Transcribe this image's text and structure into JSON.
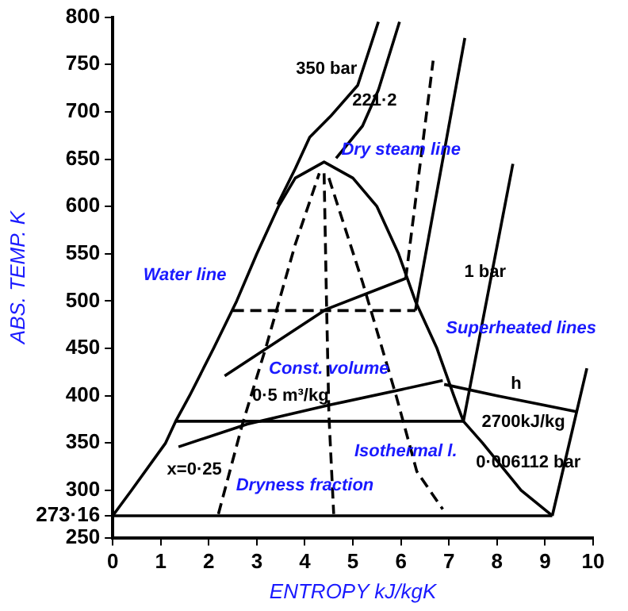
{
  "chart_data": {
    "type": "line",
    "xlabel": "ENTROPY kJ/kgK",
    "ylabel": "ABS. TEMP. K",
    "xlim": [
      0,
      10
    ],
    "ylim": [
      250,
      800
    ],
    "xticks": [
      0,
      1,
      2,
      3,
      4,
      5,
      6,
      7,
      8,
      9,
      10
    ],
    "yticks": [
      250,
      {
        "value": 273.16,
        "label": "273·16"
      },
      300,
      350,
      400,
      450,
      500,
      550,
      600,
      650,
      700,
      750,
      800
    ],
    "grid": false,
    "legend": false,
    "marker": "none",
    "series": [
      {
        "color": "#000000",
        "x": [
          0,
          0.39,
          1.1,
          1.31,
          1.6,
          2.1,
          2.58,
          3.0,
          3.45,
          3.8,
          4.4,
          5.0,
          5.5,
          5.95,
          6.3,
          6.75,
          7.1,
          7.3,
          7.7,
          8.5,
          9.15
        ],
        "values": [
          273.16,
          300,
          350,
          373,
          400,
          450,
          500,
          550,
          600,
          630,
          647,
          630,
          600,
          550,
          500,
          450,
          400,
          373,
          350,
          300,
          273.16
        ]
      },
      {
        "color": "#000000",
        "x": [
          3.43,
          3.8,
          4.1,
          4.53,
          5.1,
          5.53
        ],
        "values": [
          602,
          640,
          673,
          695,
          728,
          795
        ]
      },
      {
        "color": "#000000",
        "x": [
          4.65,
          5.2,
          5.53,
          5.97
        ],
        "values": [
          651,
          685,
          723,
          795
        ]
      },
      {
        "color": "#000000",
        "x": [
          0,
          9.15
        ],
        "values": [
          273.16,
          273.16
        ]
      },
      {
        "color": "#000000",
        "x": [
          1.31,
          7.3
        ],
        "values": [
          373,
          373
        ]
      },
      {
        "color": "#000000",
        "x": [
          7.3,
          8.33
        ],
        "values": [
          373,
          645
        ]
      },
      {
        "color": "#000000",
        "x": [
          9.15,
          9.87
        ],
        "values": [
          273.16,
          429
        ]
      },
      {
        "color": "#000000",
        "x": [
          6.3,
          7.33
        ],
        "values": [
          490,
          778
        ]
      },
      {
        "color": "#000000",
        "line_style": "dashed",
        "x": [
          2.5,
          6.3
        ],
        "values": [
          490,
          490
        ]
      },
      {
        "color": "#000000",
        "x": [
          1.37,
          2.8,
          4.5,
          6.87
        ],
        "values": [
          346,
          370,
          390,
          416
        ]
      },
      {
        "color": "#000000",
        "x": [
          2.33,
          4.43,
          6.1
        ],
        "values": [
          421,
          491,
          524
        ]
      },
      {
        "color": "#000000",
        "line_style": "dashed",
        "x": [
          6.1,
          6.67
        ],
        "values": [
          524,
          754
        ]
      },
      {
        "color": "#000000",
        "x": [
          6.9,
          8.0,
          9.67
        ],
        "values": [
          412,
          400,
          383
        ]
      },
      {
        "color": "#000000",
        "line_style": "dashed",
        "x": [
          2.2,
          2.7,
          3.2,
          3.8,
          4.3
        ],
        "values": [
          275,
          370,
          453,
          560,
          635
        ]
      },
      {
        "color": "#000000",
        "line_style": "dashed",
        "x": [
          4.4,
          4.45,
          4.5,
          4.6
        ],
        "values": [
          635,
          500,
          380,
          275
        ]
      },
      {
        "color": "#000000",
        "line_style": "dashed",
        "x": [
          4.5,
          5.2,
          5.9,
          6.33,
          6.87
        ],
        "values": [
          630,
          520,
          400,
          320,
          280
        ]
      }
    ],
    "annotations": [
      "Dry steam line",
      "Water line",
      "Superheated lines",
      "Const. volume",
      "Isothermal l.",
      "Dryness fraction",
      "350 bar",
      "221·2",
      "1 bar",
      "0·006112 bar",
      "0·5 m³/kg",
      "h",
      "2700kJ/kg",
      "x=0·25"
    ]
  }
}
